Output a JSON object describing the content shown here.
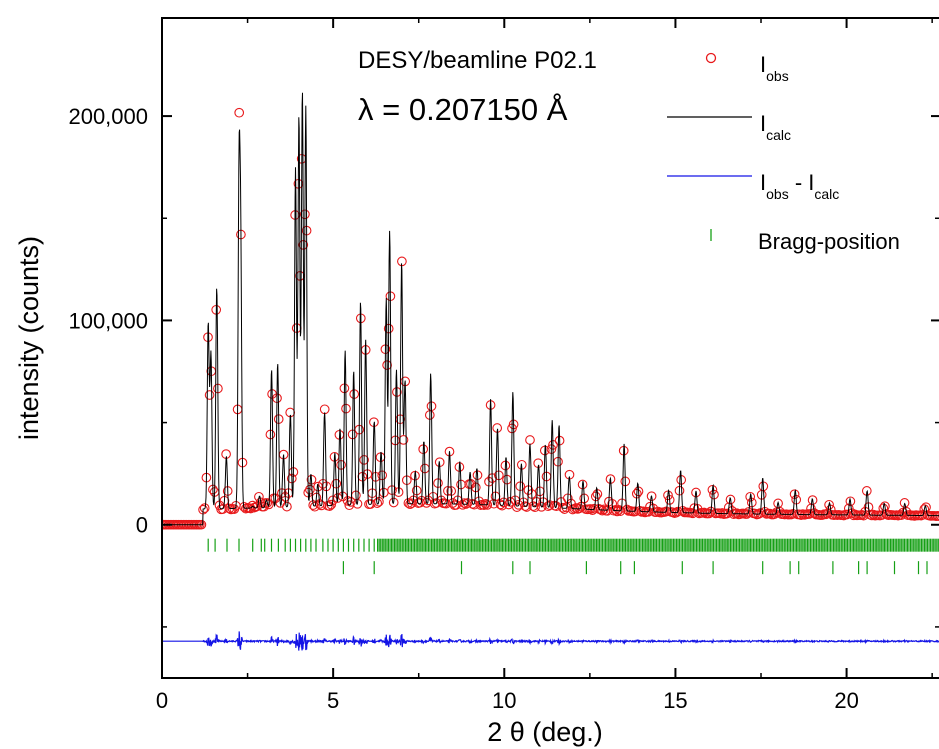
{
  "chart_data": {
    "type": "line",
    "title": "",
    "xlabel": "2 θ (deg.)",
    "ylabel": "intensity (counts)",
    "xlim": [
      0,
      22.7
    ],
    "ylim": [
      -75000,
      248000
    ],
    "grid": false,
    "x_ticks": [
      0,
      5,
      10,
      15,
      20
    ],
    "x_tick_labels": [
      "0",
      "5",
      "10",
      "15",
      "20"
    ],
    "y_ticks": [
      0,
      100000,
      200000
    ],
    "y_tick_labels": [
      "0",
      "100,000",
      "200,000"
    ],
    "annotations": {
      "facility": "DESY/beamline P02.1",
      "wavelength": "λ = 0.207150 Å"
    },
    "legend": {
      "position": "top-right",
      "entries": [
        {
          "key": "obs",
          "main": "I",
          "sub": "obs",
          "marker": "circle",
          "color": "#e8191b"
        },
        {
          "key": "calc",
          "main": "I",
          "sub": "calc",
          "marker": "line",
          "color": "#000000"
        },
        {
          "key": "diff",
          "main": "I",
          "sub": "obs",
          "main2": " - I",
          "sub2": "calc",
          "marker": "line",
          "color": "#1414e6"
        },
        {
          "key": "bragg",
          "label": "Bragg-position",
          "marker": "tick",
          "color": "#16a016"
        }
      ]
    },
    "colors": {
      "obs": "#e8191b",
      "calc": "#000000",
      "diff": "#1414e6",
      "bragg": "#16a016"
    },
    "background_level": 7000,
    "baseline_start_x": 1.2,
    "peaks": [
      {
        "x": 1.35,
        "y": 95000
      },
      {
        "x": 1.43,
        "y": 80000
      },
      {
        "x": 1.6,
        "y": 113000
      },
      {
        "x": 1.88,
        "y": 30000
      },
      {
        "x": 2.25,
        "y": 158000
      },
      {
        "x": 2.3,
        "y": 120000
      },
      {
        "x": 2.65,
        "y": 5000
      },
      {
        "x": 2.85,
        "y": 10000
      },
      {
        "x": 3.05,
        "y": 8000
      },
      {
        "x": 3.2,
        "y": 72000
      },
      {
        "x": 3.38,
        "y": 75000
      },
      {
        "x": 3.55,
        "y": 30000
      },
      {
        "x": 3.75,
        "y": 50000
      },
      {
        "x": 3.9,
        "y": 170000
      },
      {
        "x": 4.0,
        "y": 196000
      },
      {
        "x": 4.1,
        "y": 208000
      },
      {
        "x": 4.2,
        "y": 200000
      },
      {
        "x": 4.35,
        "y": 20000
      },
      {
        "x": 4.55,
        "y": 15000
      },
      {
        "x": 4.75,
        "y": 50000
      },
      {
        "x": 5.05,
        "y": 30000
      },
      {
        "x": 5.2,
        "y": 42000
      },
      {
        "x": 5.35,
        "y": 80000
      },
      {
        "x": 5.6,
        "y": 70000
      },
      {
        "x": 5.8,
        "y": 104000
      },
      {
        "x": 5.95,
        "y": 85000
      },
      {
        "x": 6.2,
        "y": 45000
      },
      {
        "x": 6.4,
        "y": 30000
      },
      {
        "x": 6.55,
        "y": 105000
      },
      {
        "x": 6.65,
        "y": 138000
      },
      {
        "x": 6.85,
        "y": 70000
      },
      {
        "x": 7.0,
        "y": 123000
      },
      {
        "x": 7.1,
        "y": 65000
      },
      {
        "x": 7.4,
        "y": 20000
      },
      {
        "x": 7.65,
        "y": 35000
      },
      {
        "x": 7.85,
        "y": 68000
      },
      {
        "x": 8.1,
        "y": 25000
      },
      {
        "x": 8.4,
        "y": 30000
      },
      {
        "x": 8.7,
        "y": 25000
      },
      {
        "x": 9.0,
        "y": 20000
      },
      {
        "x": 9.2,
        "y": 22000
      },
      {
        "x": 9.6,
        "y": 56000
      },
      {
        "x": 9.8,
        "y": 42000
      },
      {
        "x": 10.05,
        "y": 28000
      },
      {
        "x": 10.25,
        "y": 60000
      },
      {
        "x": 10.5,
        "y": 25000
      },
      {
        "x": 10.75,
        "y": 35000
      },
      {
        "x": 11.0,
        "y": 25000
      },
      {
        "x": 11.2,
        "y": 35000
      },
      {
        "x": 11.4,
        "y": 47000
      },
      {
        "x": 11.6,
        "y": 45000
      },
      {
        "x": 11.9,
        "y": 20000
      },
      {
        "x": 12.3,
        "y": 18000
      },
      {
        "x": 12.7,
        "y": 15000
      },
      {
        "x": 13.1,
        "y": 20000
      },
      {
        "x": 13.5,
        "y": 37000
      },
      {
        "x": 13.9,
        "y": 18000
      },
      {
        "x": 14.3,
        "y": 12000
      },
      {
        "x": 14.8,
        "y": 15000
      },
      {
        "x": 15.15,
        "y": 25000
      },
      {
        "x": 15.6,
        "y": 15000
      },
      {
        "x": 16.1,
        "y": 18000
      },
      {
        "x": 16.6,
        "y": 12000
      },
      {
        "x": 17.2,
        "y": 14000
      },
      {
        "x": 17.55,
        "y": 22000
      },
      {
        "x": 18.0,
        "y": 10000
      },
      {
        "x": 18.5,
        "y": 16000
      },
      {
        "x": 19.0,
        "y": 12000
      },
      {
        "x": 19.5,
        "y": 10000
      },
      {
        "x": 20.1,
        "y": 12000
      },
      {
        "x": 20.6,
        "y": 16000
      },
      {
        "x": 21.1,
        "y": 10000
      },
      {
        "x": 21.7,
        "y": 10000
      },
      {
        "x": 22.3,
        "y": 9000
      }
    ],
    "bragg_row1_y": -10000,
    "bragg_row1_dense_from": 6.3,
    "bragg_row1_sparse": [
      1.35,
      1.55,
      1.9,
      2.25,
      2.65,
      2.9,
      3.0,
      3.2,
      3.4,
      3.6,
      3.75,
      3.9,
      4.05,
      4.2,
      4.35,
      4.5,
      4.7,
      4.85,
      5.0,
      5.15,
      5.3,
      5.45,
      5.6,
      5.75,
      5.9,
      6.05,
      6.2
    ],
    "bragg_row2_y": -21000,
    "bragg_row2": [
      5.3,
      6.2,
      8.75,
      10.25,
      10.75,
      12.4,
      13.4,
      13.8,
      15.2,
      16.1,
      17.55,
      18.35,
      18.6,
      19.6,
      20.35,
      20.6,
      21.4,
      22.1,
      22.35
    ],
    "diff_baseline": -57000
  }
}
